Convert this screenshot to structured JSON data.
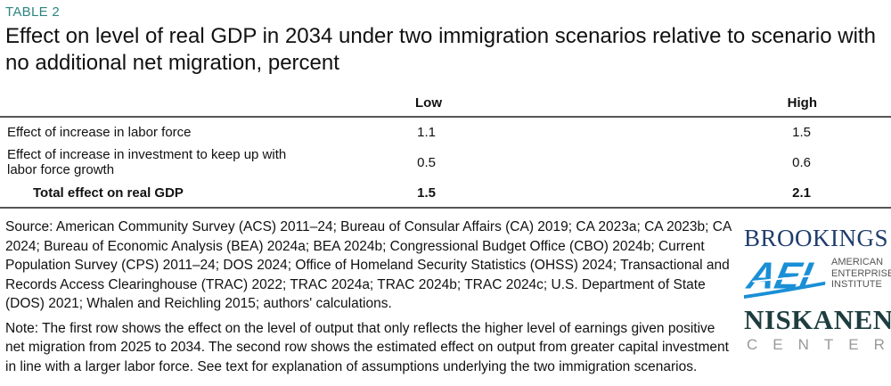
{
  "table_label": "TABLE 2",
  "title": "Effect on level of real GDP in 2034 under two immigration scenarios relative to scenario with no additional net migration, percent",
  "table": {
    "columns": [
      "",
      "Low",
      "High"
    ],
    "rows": [
      {
        "label": "Effect of increase in labor force",
        "low": "1.1",
        "high": "1.5"
      },
      {
        "label": "Effect of increase in investment to keep up with labor force growth",
        "low": "0.5",
        "high": "0.6"
      },
      {
        "label": "Total effect on real GDP",
        "low": "1.5",
        "high": "2.1"
      }
    ]
  },
  "source": "Source: American Community Survey (ACS) 2011–24; Bureau of Consular Affairs (CA) 2019; CA 2023a; CA 2023b; CA 2024; Bureau of Economic Analysis (BEA) 2024a; BEA 2024b; Congressional Budget Office (CBO) 2024b; Current Population Survey (CPS) 2011–24; DOS 2024; Office of Homeland Security Statistics (OHSS) 2024; Transactional and Records Access Clearinghouse (TRAC) 2022; TRAC 2024a; TRAC 2024b; TRAC 2024c; U.S. Department of State (DOS) 2021; Whalen and Reichling 2015; authors' calculations.",
  "note": "Note: The first row shows the effect on the level of output that only reflects the higher level of earnings given positive net migration from 2025 to 2034. The second row shows the estimated effect on output from greater capital investment in line with a larger labor force. See text for explanation of assumptions underlying the two immigration scenarios.",
  "logos": {
    "brookings": "BROOKINGS",
    "aei_mark": "AEI",
    "aei_text": [
      "AMERICAN",
      "ENTERPRISE",
      "INSTITUTE"
    ],
    "niskanen": "NISKANEN",
    "niskanen_sub": "CENTER"
  },
  "colors": {
    "label": "#2c8580",
    "brookings": "#1f3d6e",
    "aei": "#1a8fd6",
    "niskanen": "#1e3d3f"
  }
}
